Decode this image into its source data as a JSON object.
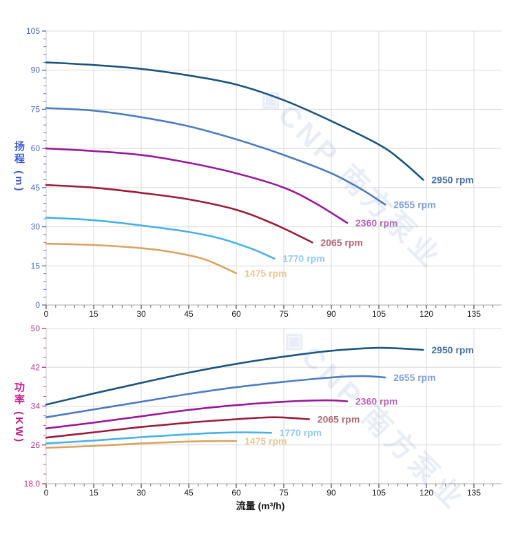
{
  "watermark": {
    "text": "◈CNP 南方泵业"
  },
  "chart_data": [
    {
      "type": "line",
      "title": "",
      "xlabel": "流量 (m³/h)",
      "ylabel": "扬程 (m)",
      "xlim": [
        0,
        135
      ],
      "ylim": [
        0,
        105
      ],
      "x_major": 15,
      "x_minor": 3,
      "y_major": 15,
      "y_minor": 3,
      "x_ticks": [
        "0",
        "15",
        "30",
        "45",
        "60",
        "75",
        "90",
        "105",
        "120",
        "135"
      ],
      "y_ticks": [
        "0",
        "15",
        "30",
        "45",
        "60",
        "75",
        "90",
        "105"
      ],
      "axis_color": "#4565d6",
      "grid": true,
      "legend_position": "end-of-line",
      "series": [
        {
          "name": "2950 rpm",
          "color": "#1a547f",
          "label_color": "#4a72aa",
          "points": [
            [
              0,
              93
            ],
            [
              15,
              92
            ],
            [
              30,
              90.5
            ],
            [
              45,
              88
            ],
            [
              60,
              84.5
            ],
            [
              75,
              78.5
            ],
            [
              90,
              70.5
            ],
            [
              105,
              61.5
            ],
            [
              112,
              55.5
            ],
            [
              119,
              48
            ]
          ]
        },
        {
          "name": "2655 rpm",
          "color": "#4c7bc0",
          "label_color": "#7f9fd8",
          "points": [
            [
              0,
              75.5
            ],
            [
              15,
              74.5
            ],
            [
              30,
              72
            ],
            [
              45,
              68.5
            ],
            [
              60,
              63.5
            ],
            [
              75,
              57.5
            ],
            [
              90,
              50.5
            ],
            [
              100,
              44
            ],
            [
              107,
              38.5
            ]
          ]
        },
        {
          "name": "2360 rpm",
          "color": "#99189b",
          "label_color": "#b764b8",
          "points": [
            [
              0,
              60
            ],
            [
              15,
              59
            ],
            [
              30,
              57.5
            ],
            [
              45,
              54.5
            ],
            [
              60,
              50.5
            ],
            [
              75,
              45
            ],
            [
              85,
              39
            ],
            [
              95,
              31.5
            ]
          ]
        },
        {
          "name": "2065 rpm",
          "color": "#9a1b38",
          "label_color": "#b26879",
          "points": [
            [
              0,
              46
            ],
            [
              15,
              45
            ],
            [
              30,
              43
            ],
            [
              45,
              40.5
            ],
            [
              60,
              36.5
            ],
            [
              72,
              31
            ],
            [
              84,
              24
            ]
          ]
        },
        {
          "name": "1770 rpm",
          "color": "#46b1e6",
          "label_color": "#8fcbf0",
          "points": [
            [
              0,
              33.5
            ],
            [
              15,
              32.5
            ],
            [
              30,
              30.5
            ],
            [
              45,
              28
            ],
            [
              55,
              25.5
            ],
            [
              65,
              21.5
            ],
            [
              72,
              17.8
            ]
          ]
        },
        {
          "name": "1475 rpm",
          "color": "#d9a35e",
          "label_color": "#eac695",
          "points": [
            [
              0,
              23.5
            ],
            [
              15,
              23
            ],
            [
              30,
              21.8
            ],
            [
              40,
              20.2
            ],
            [
              50,
              17.5
            ],
            [
              60,
              12.2
            ]
          ]
        }
      ]
    },
    {
      "type": "line",
      "title": "",
      "xlabel": "流量 (m³/h)",
      "ylabel": "功率 (KW)",
      "xlim": [
        0,
        135
      ],
      "ylim": [
        18,
        50
      ],
      "x_major": 15,
      "x_minor": 3,
      "y_major": 8,
      "y_minor": 2,
      "x_ticks": [
        "0",
        "15",
        "30",
        "45",
        "60",
        "75",
        "90",
        "105",
        "120",
        "135"
      ],
      "y_ticks": [
        "18.0",
        "26",
        "34",
        "42",
        "50"
      ],
      "axis_color": "#c42b92",
      "grid": true,
      "legend_position": "end-of-line",
      "series": [
        {
          "name": "2950 rpm",
          "color": "#1a547f",
          "label_color": "#4a72aa",
          "points": [
            [
              0,
              34.3
            ],
            [
              15,
              36.6
            ],
            [
              30,
              38.8
            ],
            [
              45,
              40.9
            ],
            [
              60,
              42.7
            ],
            [
              75,
              44.2
            ],
            [
              90,
              45.4
            ],
            [
              105,
              46
            ],
            [
              119,
              45.6
            ]
          ]
        },
        {
          "name": "2655 rpm",
          "color": "#4c7bc0",
          "label_color": "#7f9fd8",
          "points": [
            [
              0,
              31.7
            ],
            [
              15,
              33.3
            ],
            [
              30,
              34.9
            ],
            [
              45,
              36.5
            ],
            [
              60,
              37.9
            ],
            [
              75,
              39
            ],
            [
              90,
              39.9
            ],
            [
              100,
              40.2
            ],
            [
              107,
              39.9
            ]
          ]
        },
        {
          "name": "2360 rpm",
          "color": "#99189b",
          "label_color": "#b764b8",
          "points": [
            [
              0,
              29.4
            ],
            [
              15,
              30.6
            ],
            [
              30,
              31.9
            ],
            [
              45,
              33.2
            ],
            [
              60,
              34.2
            ],
            [
              75,
              34.9
            ],
            [
              88,
              35.2
            ],
            [
              95,
              35
            ]
          ]
        },
        {
          "name": "2065 rpm",
          "color": "#9a1b38",
          "label_color": "#b26879",
          "points": [
            [
              0,
              27.5
            ],
            [
              15,
              28.6
            ],
            [
              30,
              29.7
            ],
            [
              45,
              30.6
            ],
            [
              60,
              31.3
            ],
            [
              72,
              31.7
            ],
            [
              83,
              31.3
            ]
          ]
        },
        {
          "name": "1770 rpm",
          "color": "#46b1e6",
          "label_color": "#8fcbf0",
          "points": [
            [
              0,
              26.3
            ],
            [
              15,
              26.9
            ],
            [
              30,
              27.6
            ],
            [
              45,
              28.2
            ],
            [
              55,
              28.5
            ],
            [
              63,
              28.6
            ],
            [
              71,
              28.5
            ]
          ]
        },
        {
          "name": "1475 rpm",
          "color": "#d9a35e",
          "label_color": "#eac695",
          "points": [
            [
              0,
              25.4
            ],
            [
              15,
              25.8
            ],
            [
              30,
              26.3
            ],
            [
              45,
              26.7
            ],
            [
              55,
              26.8
            ],
            [
              60,
              26.8
            ]
          ]
        }
      ]
    }
  ]
}
